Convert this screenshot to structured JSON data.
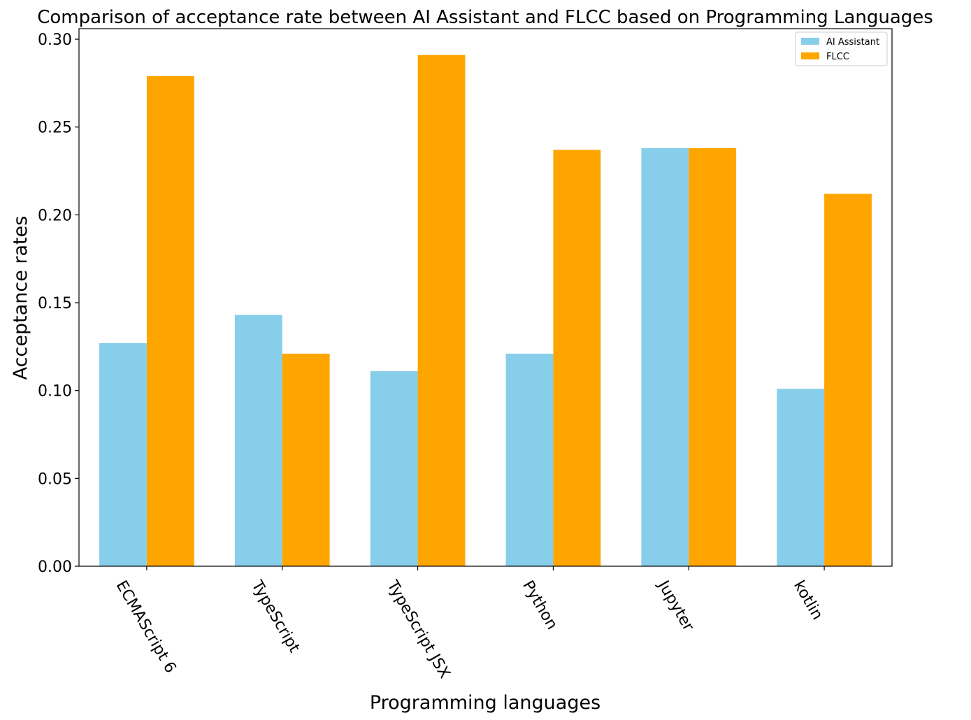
{
  "chart_data": {
    "type": "bar",
    "title": "Comparison of acceptance rate between AI Assistant and FLCC based on Programming Languages",
    "xlabel": "Programming languages",
    "ylabel": "Acceptance rates",
    "categories": [
      "ECMAScript 6",
      "TypeScript",
      "TypeScript JSX",
      "Python",
      "Jupyter",
      "kotlin"
    ],
    "series": [
      {
        "name": "AI Assistant",
        "color": "#87ceeb",
        "values": [
          0.127,
          0.143,
          0.111,
          0.121,
          0.238,
          0.101
        ]
      },
      {
        "name": "FLCC",
        "color": "#ffa500",
        "values": [
          0.279,
          0.121,
          0.291,
          0.237,
          0.238,
          0.212
        ]
      }
    ],
    "ylim": [
      0,
      0.306
    ],
    "yticks": [
      "0.00",
      "0.05",
      "0.10",
      "0.15",
      "0.20",
      "0.25",
      "0.30"
    ],
    "grid": false,
    "legend_position": "top-right"
  }
}
